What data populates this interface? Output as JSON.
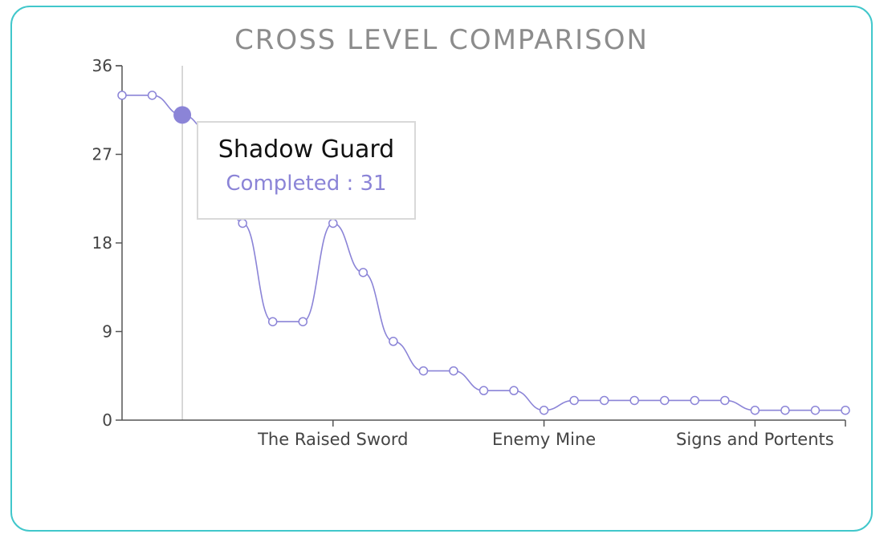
{
  "chart_data": {
    "type": "line",
    "title": "CROSS LEVEL COMPARISON",
    "xlabel": "",
    "ylabel": "",
    "ylim": [
      0,
      36
    ],
    "yticks": [
      0,
      9,
      18,
      27,
      36
    ],
    "x_tick_labels": [
      {
        "index": 7,
        "label": "The Raised Sword"
      },
      {
        "index": 14,
        "label": "Enemy Mine"
      },
      {
        "index": 21,
        "label": "Signs and Portents"
      }
    ],
    "series": [
      {
        "values": [
          33,
          33,
          31,
          29,
          20,
          10,
          10,
          20,
          15,
          8,
          5,
          5,
          3,
          3,
          1,
          2,
          2,
          2,
          2,
          2,
          2,
          1,
          1,
          1,
          1
        ]
      }
    ],
    "highlight_index": 2,
    "grid": false,
    "colors": {
      "line": "#8b84d7",
      "axis": "#555555",
      "card_border": "#41c7cb",
      "crosshair": "#cccccc"
    }
  },
  "tooltip": {
    "title": "Shadow Guard",
    "label": "Completed",
    "separator": " : ",
    "value": "31"
  }
}
